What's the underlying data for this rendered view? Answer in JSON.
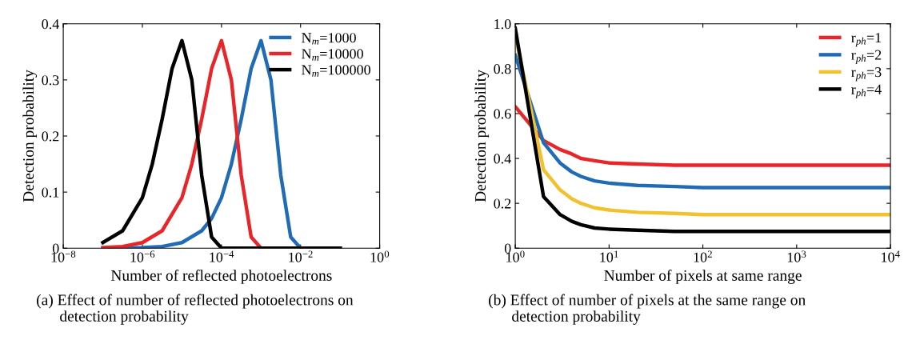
{
  "chart_data": [
    {
      "type": "line",
      "xlabel": "Number of reflected photoelectrons",
      "ylabel": "Detection probability",
      "log": "x",
      "xlim": [
        1e-08,
        1
      ],
      "ylim": [
        0,
        0.4
      ],
      "xticks": [
        {
          "value": 1e-08,
          "label": "10$^{−8}$"
        },
        {
          "value": 1e-06,
          "label": "10$^{−6}$"
        },
        {
          "value": 0.0001,
          "label": "10$^{−4}$"
        },
        {
          "value": 0.01,
          "label": "10$^{−2}$"
        },
        {
          "value": 1,
          "label": "10$^{0}$"
        }
      ],
      "yticks": [
        0,
        0.1,
        0.2,
        0.3,
        0.4
      ],
      "legend": "top right",
      "grid": false,
      "series": [
        {
          "name": "N$_{m}$=1000",
          "color": "#1f6cb4",
          "x": [
            1e-07,
            3.16e-07,
            1e-06,
            3.16e-06,
            1e-05,
            3.16e-05,
            5.62e-05,
            0.0001,
            0.000178,
            0.000316,
            0.000562,
            0.001,
            0.00178,
            0.00316,
            0.00562,
            0.01,
            0.0316,
            0.1
          ],
          "values": [
            0,
            0,
            0.001,
            0.003,
            0.01,
            0.031,
            0.053,
            0.09,
            0.15,
            0.23,
            0.32,
            0.37,
            0.3,
            0.13,
            0.02,
            0,
            0,
            0
          ]
        },
        {
          "name": "N$_{m}$=10000",
          "color": "#e8262a",
          "x": [
            1e-07,
            3.16e-07,
            1e-06,
            3.16e-06,
            1e-05,
            1.78e-05,
            3.16e-05,
            5.62e-05,
            0.0001,
            0.000178,
            0.000316,
            0.000562,
            0.001,
            0.01,
            0.1
          ],
          "values": [
            0.001,
            0.003,
            0.01,
            0.031,
            0.09,
            0.15,
            0.23,
            0.32,
            0.37,
            0.3,
            0.13,
            0.02,
            0,
            0,
            0
          ]
        },
        {
          "name": "N$_{m}$=100000",
          "color": "#000000",
          "x": [
            1e-07,
            3.16e-07,
            1e-06,
            1.78e-06,
            3.16e-06,
            5.62e-06,
            1e-05,
            1.78e-05,
            3.16e-05,
            5.62e-05,
            0.0001,
            0.001,
            0.01,
            0.1
          ],
          "values": [
            0.01,
            0.031,
            0.09,
            0.15,
            0.23,
            0.32,
            0.37,
            0.3,
            0.13,
            0.02,
            0,
            0,
            0,
            0
          ]
        }
      ],
      "annotations": [
        "(a) Effect of number of reflected photoelectrons on\n      detection probability"
      ]
    },
    {
      "type": "line",
      "xlabel": "Number of pixels at same range",
      "ylabel": "Detection probability",
      "log": "x",
      "xlim": [
        1,
        10000
      ],
      "ylim": [
        0,
        1
      ],
      "xticks": [
        {
          "value": 1,
          "label": "10$^{0}$"
        },
        {
          "value": 10,
          "label": "10$^{1}$"
        },
        {
          "value": 100,
          "label": "10$^{2}$"
        },
        {
          "value": 1000,
          "label": "10$^{3}$"
        },
        {
          "value": 10000,
          "label": "10$^{4}$"
        }
      ],
      "yticks": [
        0,
        {
          "value": 0.2,
          "label": "0.2"
        },
        {
          "value": 0.4,
          "label": "0.4"
        },
        {
          "value": 0.6,
          "label": "0.6"
        },
        {
          "value": 0.8,
          "label": "0.8"
        },
        {
          "value": 1,
          "label": "1.0"
        }
      ],
      "legend": "top right",
      "grid": false,
      "series": [
        {
          "name": "r$_{ph}$=1",
          "color": "#e8262a",
          "x": [
            1,
            2,
            3,
            4,
            5,
            7,
            10,
            20,
            50,
            100,
            1000,
            10000
          ],
          "values": [
            0.63,
            0.48,
            0.44,
            0.42,
            0.4,
            0.39,
            0.38,
            0.375,
            0.37,
            0.37,
            0.37,
            0.37
          ]
        },
        {
          "name": "r$_{ph}$=2",
          "color": "#1f6cb4",
          "x": [
            1,
            2,
            3,
            4,
            5,
            7,
            10,
            20,
            50,
            100,
            1000,
            10000
          ],
          "values": [
            0.86,
            0.47,
            0.38,
            0.34,
            0.32,
            0.3,
            0.29,
            0.28,
            0.275,
            0.27,
            0.27,
            0.27
          ]
        },
        {
          "name": "r$_{ph}$=3",
          "color": "#f2c12e",
          "x": [
            1,
            2,
            3,
            4,
            5,
            7,
            10,
            20,
            50,
            100,
            1000,
            10000
          ],
          "values": [
            0.95,
            0.35,
            0.26,
            0.22,
            0.2,
            0.18,
            0.17,
            0.16,
            0.155,
            0.15,
            0.15,
            0.15
          ]
        },
        {
          "name": "r$_{ph}$=4",
          "color": "#000000",
          "x": [
            1,
            2,
            3,
            4,
            5,
            7,
            10,
            20,
            50,
            100,
            1000,
            10000
          ],
          "values": [
            0.98,
            0.23,
            0.15,
            0.12,
            0.105,
            0.09,
            0.085,
            0.08,
            0.075,
            0.075,
            0.075,
            0.075
          ]
        }
      ],
      "annotations": [
        "(b) Effect of number of pixels at the same range on\n      detection probability"
      ]
    }
  ]
}
